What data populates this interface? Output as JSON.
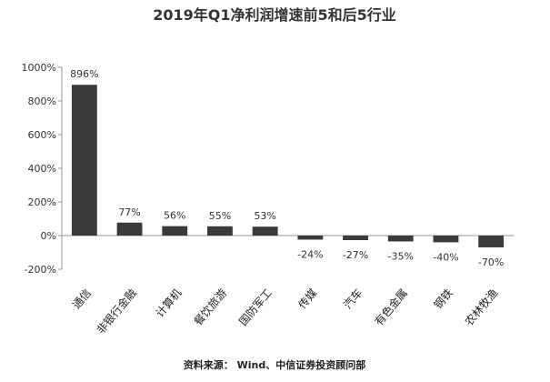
{
  "chart_data": {
    "type": "bar",
    "title": "2019年Q1净利润增速前5和后5行业",
    "categories": [
      "通信",
      "非银行金融",
      "计算机",
      "餐饮旅游",
      "国防军工",
      "传媒",
      "汽车",
      "有色金属",
      "钢铁",
      "农林牧渔"
    ],
    "values": [
      896,
      77,
      56,
      55,
      53,
      -24,
      -27,
      -35,
      -40,
      -70
    ],
    "data_labels": [
      "896%",
      "77%",
      "56%",
      "55%",
      "53%",
      "-24%",
      "-27%",
      "-35%",
      "-40%",
      "-70%"
    ],
    "ylim": [
      -200,
      1000
    ],
    "yticks": [
      -200,
      0,
      200,
      400,
      600,
      800,
      1000
    ],
    "ytick_labels": [
      "-200%",
      "0%",
      "200%",
      "400%",
      "600%",
      "800%",
      "1000%"
    ],
    "xlabel": "",
    "ylabel": "",
    "grid": false,
    "legend": "none",
    "bar_color": "#3a3a3a",
    "source": "资料来源： Wind、中信证券投资顾问部"
  }
}
